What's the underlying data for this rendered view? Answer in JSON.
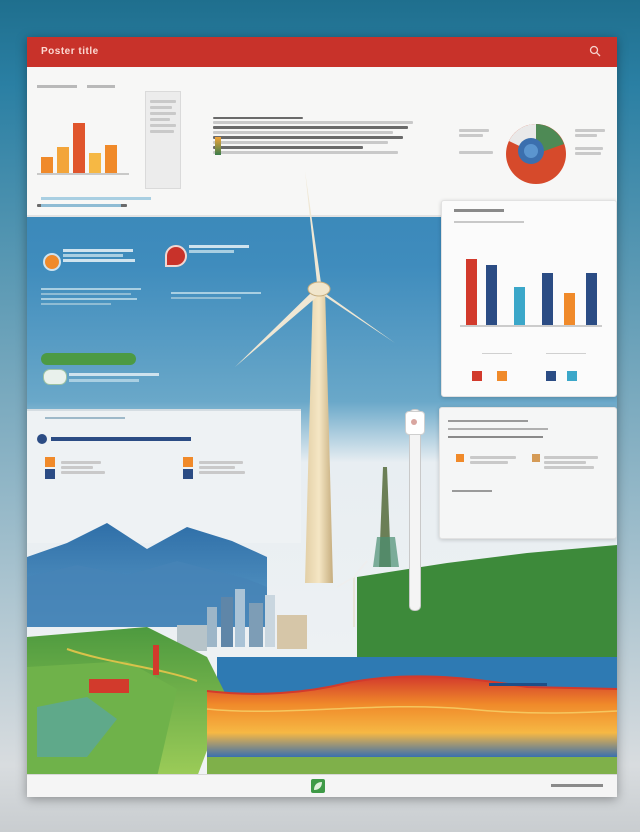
{
  "header": {
    "title": "Poster title",
    "search_icon": "search-icon"
  },
  "colors": {
    "brand_red": "#c8322a",
    "navy": "#2b4c84",
    "sky": "#2f7fb0",
    "orange": "#f08a2a",
    "teal": "#3ba7c9"
  },
  "footer": {
    "logo": "leaf-logo-icon"
  }
}
